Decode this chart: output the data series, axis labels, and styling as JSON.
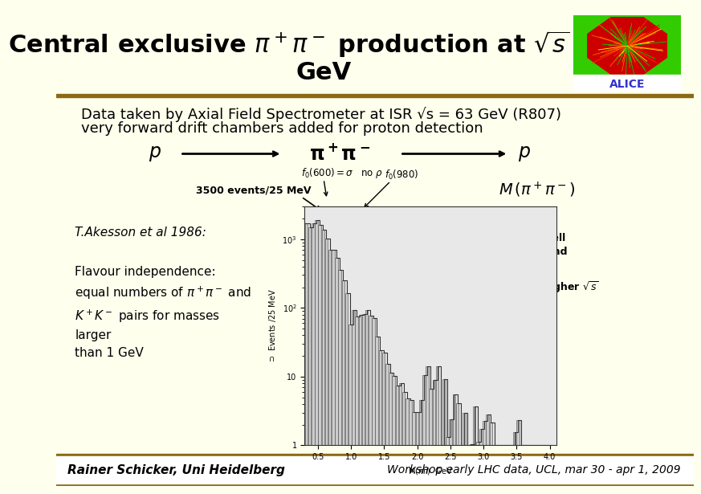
{
  "background_color": "#FFFFEE",
  "title_line1": "Central exclusive π⁺π⁻ production at √s = 63",
  "title_line2": "GeV",
  "title_fontsize": 24,
  "title_color": "#000000",
  "header_bar_color": "#8B6914",
  "body_text1": "Data taken by Axial Field Spectrometer at ISR √s = 63 GeV (R807)",
  "body_text2": "very forward drift chambers added for proton detection",
  "body_fontsize": 13,
  "footer_left": "Rainer Schicker, Uni Heidelberg",
  "footer_right": "Workshop early LHC data, UCL, mar 30 - apr 1, 2009",
  "footer_bar_color": "#8B6914",
  "footer_fontsize": 11
}
